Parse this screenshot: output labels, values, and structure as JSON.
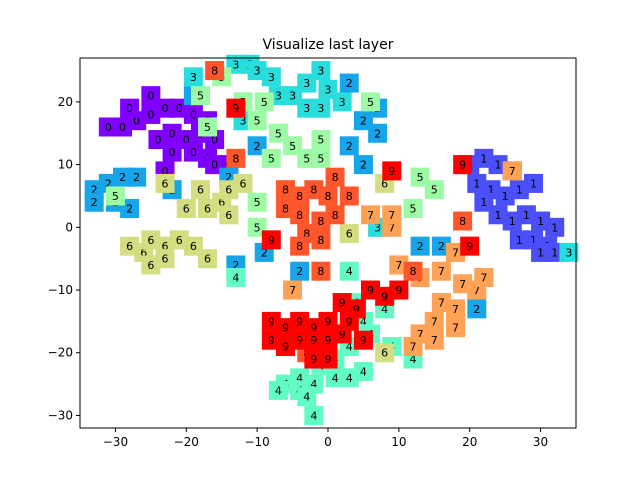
{
  "chart_data": {
    "type": "scatter",
    "title": "Visualize last layer",
    "xlabel": "",
    "ylabel": "",
    "xlim": [
      -35,
      35
    ],
    "ylim": [
      -32,
      27
    ],
    "xticks": [
      -30,
      -20,
      -10,
      0,
      10,
      20,
      30
    ],
    "yticks": [
      -30,
      -20,
      -10,
      0,
      10,
      20
    ],
    "xtick_labels": [
      "−30",
      "−20",
      "−10",
      "0",
      "10",
      "20",
      "30"
    ],
    "ytick_labels": [
      "−30",
      "−20",
      "−10",
      "0",
      "10",
      "20"
    ],
    "grid": false,
    "marker": "square labeled with digit class",
    "colors": {
      "0": "#8000ff",
      "1": "#4a4ff8",
      "2": "#16a5e9",
      "3": "#2adddd",
      "4": "#62fbc4",
      "5": "#9cfba4",
      "6": "#d4dd80",
      "7": "#ffa256",
      "8": "#ff562c",
      "9": "#ff0000"
    },
    "points": [
      {
        "label": "0",
        "x": -29,
        "y": 16
      },
      {
        "label": "0",
        "x": -27,
        "y": 17
      },
      {
        "label": "0",
        "x": -25,
        "y": 18
      },
      {
        "label": "0",
        "x": -23,
        "y": 19
      },
      {
        "label": "0",
        "x": -21,
        "y": 19
      },
      {
        "label": "0",
        "x": -19,
        "y": 18
      },
      {
        "label": "0",
        "x": -17,
        "y": 17
      },
      {
        "label": "0",
        "x": -24,
        "y": 14
      },
      {
        "label": "0",
        "x": -22,
        "y": 15
      },
      {
        "label": "0",
        "x": -20,
        "y": 14
      },
      {
        "label": "0",
        "x": -18,
        "y": 15
      },
      {
        "label": "0",
        "x": -16,
        "y": 14
      },
      {
        "label": "0",
        "x": -22,
        "y": 12
      },
      {
        "label": "0",
        "x": -19,
        "y": 12
      },
      {
        "label": "0",
        "x": -17,
        "y": 11
      },
      {
        "label": "0",
        "x": -16,
        "y": 10
      },
      {
        "label": "0",
        "x": -25,
        "y": 21
      },
      {
        "label": "0",
        "x": -28,
        "y": 19
      },
      {
        "label": "0",
        "x": -31,
        "y": 16
      },
      {
        "label": "0",
        "x": -14,
        "y": 10
      },
      {
        "label": "0",
        "x": -23,
        "y": 9
      },
      {
        "label": "1",
        "x": 20,
        "y": 10
      },
      {
        "label": "1",
        "x": 22,
        "y": 11
      },
      {
        "label": "1",
        "x": 24,
        "y": 10
      },
      {
        "label": "1",
        "x": 26,
        "y": 9
      },
      {
        "label": "1",
        "x": 21,
        "y": 7
      },
      {
        "label": "1",
        "x": 23,
        "y": 6
      },
      {
        "label": "1",
        "x": 25,
        "y": 5
      },
      {
        "label": "1",
        "x": 27,
        "y": 6
      },
      {
        "label": "1",
        "x": 29,
        "y": 7
      },
      {
        "label": "1",
        "x": 24,
        "y": 2
      },
      {
        "label": "1",
        "x": 26,
        "y": 1
      },
      {
        "label": "1",
        "x": 28,
        "y": 2
      },
      {
        "label": "1",
        "x": 30,
        "y": 1
      },
      {
        "label": "1",
        "x": 32,
        "y": 0
      },
      {
        "label": "1",
        "x": 27,
        "y": -2
      },
      {
        "label": "1",
        "x": 29,
        "y": -2
      },
      {
        "label": "1",
        "x": 31,
        "y": -3
      },
      {
        "label": "1",
        "x": 30,
        "y": -4
      },
      {
        "label": "1",
        "x": 32,
        "y": -4
      },
      {
        "label": "1",
        "x": 22,
        "y": 4
      },
      {
        "label": "2",
        "x": -33,
        "y": 6
      },
      {
        "label": "2",
        "x": -31,
        "y": 7
      },
      {
        "label": "2",
        "x": -29,
        "y": 8
      },
      {
        "label": "2",
        "x": -27,
        "y": 8
      },
      {
        "label": "2",
        "x": -33,
        "y": 4
      },
      {
        "label": "2",
        "x": -30,
        "y": 4
      },
      {
        "label": "2",
        "x": -28,
        "y": 3
      },
      {
        "label": "2",
        "x": -22,
        "y": 6
      },
      {
        "label": "2",
        "x": -19,
        "y": 21
      },
      {
        "label": "2",
        "x": -14,
        "y": 8
      },
      {
        "label": "2",
        "x": -10,
        "y": 13
      },
      {
        "label": "2",
        "x": -13,
        "y": -6
      },
      {
        "label": "2",
        "x": -9,
        "y": -4
      },
      {
        "label": "2",
        "x": -4,
        "y": -7
      },
      {
        "label": "2",
        "x": 3,
        "y": 23
      },
      {
        "label": "2",
        "x": 5,
        "y": 17
      },
      {
        "label": "2",
        "x": 7,
        "y": 15
      },
      {
        "label": "2",
        "x": 3,
        "y": 13
      },
      {
        "label": "2",
        "x": 5,
        "y": 10
      },
      {
        "label": "2",
        "x": 13,
        "y": -3
      },
      {
        "label": "2",
        "x": 16,
        "y": -3
      },
      {
        "label": "2",
        "x": 21,
        "y": -13
      },
      {
        "label": "2",
        "x": 7,
        "y": 19
      },
      {
        "label": "3",
        "x": -19,
        "y": 24
      },
      {
        "label": "3",
        "x": -13,
        "y": 26
      },
      {
        "label": "3",
        "x": -11,
        "y": 26
      },
      {
        "label": "3",
        "x": -10,
        "y": 25
      },
      {
        "label": "3",
        "x": -8,
        "y": 24
      },
      {
        "label": "3",
        "x": -7,
        "y": 21
      },
      {
        "label": "3",
        "x": -5,
        "y": 21
      },
      {
        "label": "3",
        "x": -3,
        "y": 23
      },
      {
        "label": "3",
        "x": -1,
        "y": 25
      },
      {
        "label": "3",
        "x": -3,
        "y": 19
      },
      {
        "label": "3",
        "x": -1,
        "y": 19
      },
      {
        "label": "3",
        "x": 0,
        "y": 22
      },
      {
        "label": "3",
        "x": 2,
        "y": 20
      },
      {
        "label": "3",
        "x": -12,
        "y": 17
      },
      {
        "label": "3",
        "x": 7,
        "y": 0
      },
      {
        "label": "3",
        "x": 22,
        "y": -8
      },
      {
        "label": "3",
        "x": 34,
        "y": -4
      },
      {
        "label": "4",
        "x": -13,
        "y": -8
      },
      {
        "label": "4",
        "x": 3,
        "y": -7
      },
      {
        "label": "4",
        "x": 4,
        "y": -12
      },
      {
        "label": "4",
        "x": 8,
        "y": -13
      },
      {
        "label": "4",
        "x": 5,
        "y": -15
      },
      {
        "label": "4",
        "x": 6,
        "y": -17
      },
      {
        "label": "4",
        "x": 9,
        "y": -19
      },
      {
        "label": "4",
        "x": 3,
        "y": -19
      },
      {
        "label": "4",
        "x": 1,
        "y": -21
      },
      {
        "label": "4",
        "x": -1,
        "y": -22
      },
      {
        "label": "4",
        "x": -4,
        "y": -24
      },
      {
        "label": "4",
        "x": -2,
        "y": -25
      },
      {
        "label": "4",
        "x": 1,
        "y": -24
      },
      {
        "label": "4",
        "x": 3,
        "y": -24
      },
      {
        "label": "4",
        "x": 5,
        "y": -23
      },
      {
        "label": "4",
        "x": -6,
        "y": -25
      },
      {
        "label": "4",
        "x": -4,
        "y": -26
      },
      {
        "label": "4",
        "x": -7,
        "y": -26
      },
      {
        "label": "4",
        "x": -3,
        "y": -27
      },
      {
        "label": "4",
        "x": -2,
        "y": -30
      },
      {
        "label": "4",
        "x": 12,
        "y": -21
      },
      {
        "label": "5",
        "x": -18,
        "y": 21
      },
      {
        "label": "5",
        "x": -15,
        "y": 24
      },
      {
        "label": "5",
        "x": -12,
        "y": 20
      },
      {
        "label": "5",
        "x": -10,
        "y": 17
      },
      {
        "label": "5",
        "x": -7,
        "y": 15
      },
      {
        "label": "5",
        "x": -5,
        "y": 13
      },
      {
        "label": "5",
        "x": -3,
        "y": 11
      },
      {
        "label": "5",
        "x": -1,
        "y": 14
      },
      {
        "label": "5",
        "x": -17,
        "y": 16
      },
      {
        "label": "5",
        "x": -8,
        "y": 11
      },
      {
        "label": "5",
        "x": -10,
        "y": 4
      },
      {
        "label": "5",
        "x": -10,
        "y": 0
      },
      {
        "label": "5",
        "x": -1,
        "y": 11
      },
      {
        "label": "5",
        "x": 6,
        "y": 20
      },
      {
        "label": "5",
        "x": 13,
        "y": 8
      },
      {
        "label": "5",
        "x": 15,
        "y": 6
      },
      {
        "label": "5",
        "x": 12,
        "y": 3
      },
      {
        "label": "5",
        "x": -30,
        "y": 5
      },
      {
        "label": "5",
        "x": -9,
        "y": 20
      },
      {
        "label": "6",
        "x": -28,
        "y": -3
      },
      {
        "label": "6",
        "x": -26,
        "y": -4
      },
      {
        "label": "6",
        "x": -25,
        "y": -2
      },
      {
        "label": "6",
        "x": -23,
        "y": -3
      },
      {
        "label": "6",
        "x": -25,
        "y": -6
      },
      {
        "label": "6",
        "x": -23,
        "y": -5
      },
      {
        "label": "6",
        "x": -21,
        "y": -2
      },
      {
        "label": "6",
        "x": -19,
        "y": -3
      },
      {
        "label": "6",
        "x": -20,
        "y": 3
      },
      {
        "label": "6",
        "x": -18,
        "y": 6
      },
      {
        "label": "6",
        "x": -17,
        "y": 3
      },
      {
        "label": "6",
        "x": -15,
        "y": 4
      },
      {
        "label": "6",
        "x": -14,
        "y": 6
      },
      {
        "label": "6",
        "x": -12,
        "y": 7
      },
      {
        "label": "6",
        "x": -14,
        "y": 2
      },
      {
        "label": "6",
        "x": -17,
        "y": -5
      },
      {
        "label": "6",
        "x": -23,
        "y": 7
      },
      {
        "label": "6",
        "x": 3,
        "y": -1
      },
      {
        "label": "6",
        "x": 8,
        "y": 7
      },
      {
        "label": "6",
        "x": 8,
        "y": -20
      },
      {
        "label": "7",
        "x": -5,
        "y": -10
      },
      {
        "label": "7",
        "x": 6,
        "y": 2
      },
      {
        "label": "7",
        "x": 9,
        "y": 0
      },
      {
        "label": "7",
        "x": 10,
        "y": -6
      },
      {
        "label": "7",
        "x": 13,
        "y": -8
      },
      {
        "label": "7",
        "x": 16,
        "y": -7
      },
      {
        "label": "7",
        "x": 18,
        "y": -4
      },
      {
        "label": "7",
        "x": 16,
        "y": -12
      },
      {
        "label": "7",
        "x": 19,
        "y": -9
      },
      {
        "label": "7",
        "x": 21,
        "y": -10
      },
      {
        "label": "7",
        "x": 18,
        "y": -13
      },
      {
        "label": "7",
        "x": 15,
        "y": -15
      },
      {
        "label": "7",
        "x": 18,
        "y": -16
      },
      {
        "label": "7",
        "x": 15,
        "y": -18
      },
      {
        "label": "7",
        "x": 13,
        "y": -17
      },
      {
        "label": "7",
        "x": 12,
        "y": -19
      },
      {
        "label": "7",
        "x": 22,
        "y": -8
      },
      {
        "label": "7",
        "x": 9,
        "y": 2
      },
      {
        "label": "7",
        "x": 26,
        "y": 9
      },
      {
        "label": "8",
        "x": -16,
        "y": 25
      },
      {
        "label": "8",
        "x": -13,
        "y": 11
      },
      {
        "label": "8",
        "x": -6,
        "y": 6
      },
      {
        "label": "8",
        "x": -4,
        "y": 5
      },
      {
        "label": "8",
        "x": -2,
        "y": 6
      },
      {
        "label": "8",
        "x": 0,
        "y": 5
      },
      {
        "label": "8",
        "x": 3,
        "y": 5
      },
      {
        "label": "8",
        "x": -6,
        "y": 3
      },
      {
        "label": "8",
        "x": -4,
        "y": 2
      },
      {
        "label": "8",
        "x": -1,
        "y": 1
      },
      {
        "label": "8",
        "x": 1,
        "y": 2
      },
      {
        "label": "8",
        "x": -3,
        "y": -1
      },
      {
        "label": "8",
        "x": -1,
        "y": -2
      },
      {
        "label": "8",
        "x": -4,
        "y": -3
      },
      {
        "label": "8",
        "x": 1,
        "y": 8
      },
      {
        "label": "8",
        "x": -1,
        "y": -7
      },
      {
        "label": "8",
        "x": -3,
        "y": -20
      },
      {
        "label": "8",
        "x": 12,
        "y": -7
      },
      {
        "label": "8",
        "x": 19,
        "y": 1
      },
      {
        "label": "9",
        "x": -13,
        "y": 19
      },
      {
        "label": "9",
        "x": -8,
        "y": -2
      },
      {
        "label": "9",
        "x": -8,
        "y": -15
      },
      {
        "label": "9",
        "x": -6,
        "y": -16
      },
      {
        "label": "9",
        "x": -4,
        "y": -15
      },
      {
        "label": "9",
        "x": -2,
        "y": -16
      },
      {
        "label": "9",
        "x": 0,
        "y": -15
      },
      {
        "label": "9",
        "x": 2,
        "y": -12
      },
      {
        "label": "9",
        "x": 4,
        "y": -13
      },
      {
        "label": "9",
        "x": 6,
        "y": -10
      },
      {
        "label": "9",
        "x": 8,
        "y": -11
      },
      {
        "label": "9",
        "x": -8,
        "y": -18
      },
      {
        "label": "9",
        "x": -6,
        "y": -19
      },
      {
        "label": "9",
        "x": -4,
        "y": -18
      },
      {
        "label": "9",
        "x": -2,
        "y": -18
      },
      {
        "label": "9",
        "x": 0,
        "y": -18
      },
      {
        "label": "9",
        "x": 2,
        "y": -17
      },
      {
        "label": "9",
        "x": -2,
        "y": -21
      },
      {
        "label": "9",
        "x": 0,
        "y": -21
      },
      {
        "label": "9",
        "x": 3,
        "y": -15
      },
      {
        "label": "9",
        "x": 5,
        "y": -18
      },
      {
        "label": "9",
        "x": 10,
        "y": -10
      },
      {
        "label": "9",
        "x": 9,
        "y": 9
      },
      {
        "label": "9",
        "x": 19,
        "y": 10
      },
      {
        "label": "9",
        "x": 20,
        "y": -3
      }
    ]
  }
}
